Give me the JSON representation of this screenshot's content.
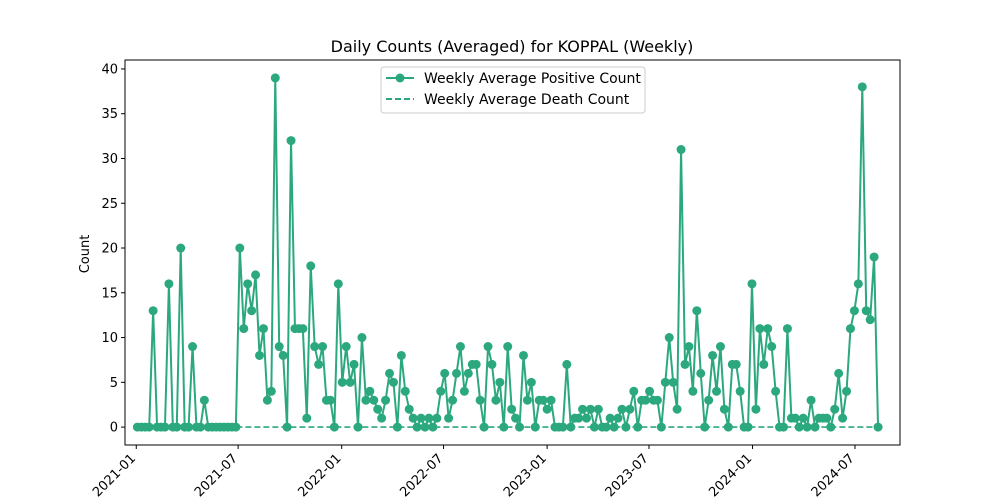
{
  "chart_data": {
    "type": "line",
    "title": "Daily Counts (Averaged) for KOPPAL (Weekly)",
    "xlabel": "",
    "ylabel": "Count",
    "ylim": [
      -2,
      41
    ],
    "xlim": [
      "2020-12-12",
      "2024-09-19"
    ],
    "y_ticks": [
      0,
      5,
      10,
      15,
      20,
      25,
      30,
      35,
      40
    ],
    "x_ticks": [
      "2021-01",
      "2021-07",
      "2022-01",
      "2022-07",
      "2023-01",
      "2023-07",
      "2024-01",
      "2024-07"
    ],
    "x_start_date": "2021-01-03",
    "x_step_days": 7,
    "grid": false,
    "legend_position": "upper center",
    "colors": {
      "series": "#2ca87f"
    },
    "series": [
      {
        "name": "Weekly Average Positive Count",
        "style": "line-with-markers",
        "values": [
          0,
          0,
          0,
          0,
          13,
          0,
          0,
          0,
          16,
          0,
          0,
          20,
          0,
          0,
          9,
          0,
          0,
          3,
          0,
          0,
          0,
          0,
          0,
          0,
          0,
          0,
          20,
          11,
          16,
          13,
          17,
          8,
          11,
          3,
          4,
          39,
          9,
          8,
          0,
          32,
          11,
          11,
          11,
          1,
          18,
          9,
          7,
          9,
          3,
          3,
          0,
          16,
          5,
          9,
          5,
          7,
          0,
          10,
          3,
          4,
          3,
          2,
          1,
          3,
          6,
          5,
          0,
          8,
          4,
          2,
          1,
          0,
          1,
          0,
          1,
          0,
          1,
          4,
          6,
          1,
          3,
          6,
          9,
          4,
          6,
          7,
          7,
          3,
          0,
          9,
          7,
          3,
          5,
          0,
          9,
          2,
          1,
          0,
          8,
          3,
          5,
          0,
          3,
          3,
          2,
          3,
          0,
          0,
          0,
          7,
          0,
          1,
          1,
          2,
          1,
          2,
          0,
          2,
          0,
          0,
          1,
          0,
          1,
          2,
          0,
          2,
          4,
          0,
          3,
          3,
          4,
          3,
          3,
          0,
          5,
          10,
          5,
          2,
          31,
          7,
          9,
          4,
          13,
          6,
          0,
          3,
          8,
          4,
          9,
          2,
          0,
          7,
          7,
          4,
          0,
          0,
          16,
          2,
          11,
          7,
          11,
          9,
          4,
          0,
          0,
          11,
          1,
          1,
          0,
          1,
          0,
          3,
          0,
          1,
          1,
          1,
          0,
          2,
          6,
          1,
          4,
          11,
          13,
          16,
          38,
          13,
          12,
          19,
          0
        ]
      },
      {
        "name": "Weekly Average Death Count",
        "style": "dashed",
        "values": "all zero",
        "value": 0
      }
    ]
  }
}
